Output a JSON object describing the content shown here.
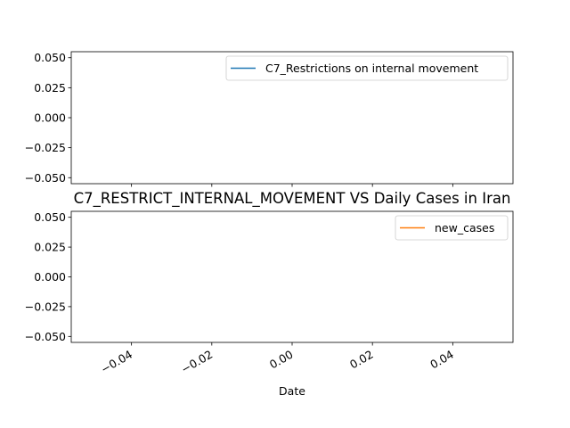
{
  "chart_data": {
    "type": "line",
    "title": "C7_RESTRICT_INTERNAL_MOVEMENT VS Daily Cases in Iran",
    "xlabel": "Date",
    "x_ticks": [
      "−0.04",
      "−0.02",
      "0.00",
      "0.02",
      "0.04"
    ],
    "x_tick_values": [
      -0.04,
      -0.02,
      0.0,
      0.02,
      0.04
    ],
    "xlim": [
      -0.055,
      0.055
    ],
    "panels": [
      {
        "ylim": [
          -0.055,
          0.055
        ],
        "y_ticks": [
          "0.050",
          "0.025",
          "0.000",
          "−0.025",
          "−0.050"
        ],
        "y_tick_values": [
          0.05,
          0.025,
          0.0,
          -0.025,
          -0.05
        ],
        "legend_position": "upper right",
        "series": [
          {
            "name": "C7_Restrictions on internal movement",
            "color": "#1f77b4",
            "x": [],
            "y": []
          }
        ]
      },
      {
        "ylim": [
          -0.055,
          0.055
        ],
        "y_ticks": [
          "0.050",
          "0.025",
          "0.000",
          "−0.025",
          "−0.050"
        ],
        "y_tick_values": [
          0.05,
          0.025,
          0.0,
          -0.025,
          -0.05
        ],
        "legend_position": "upper right",
        "series": [
          {
            "name": "new_cases",
            "color": "#ff7f0e",
            "x": [],
            "y": []
          }
        ]
      }
    ]
  }
}
